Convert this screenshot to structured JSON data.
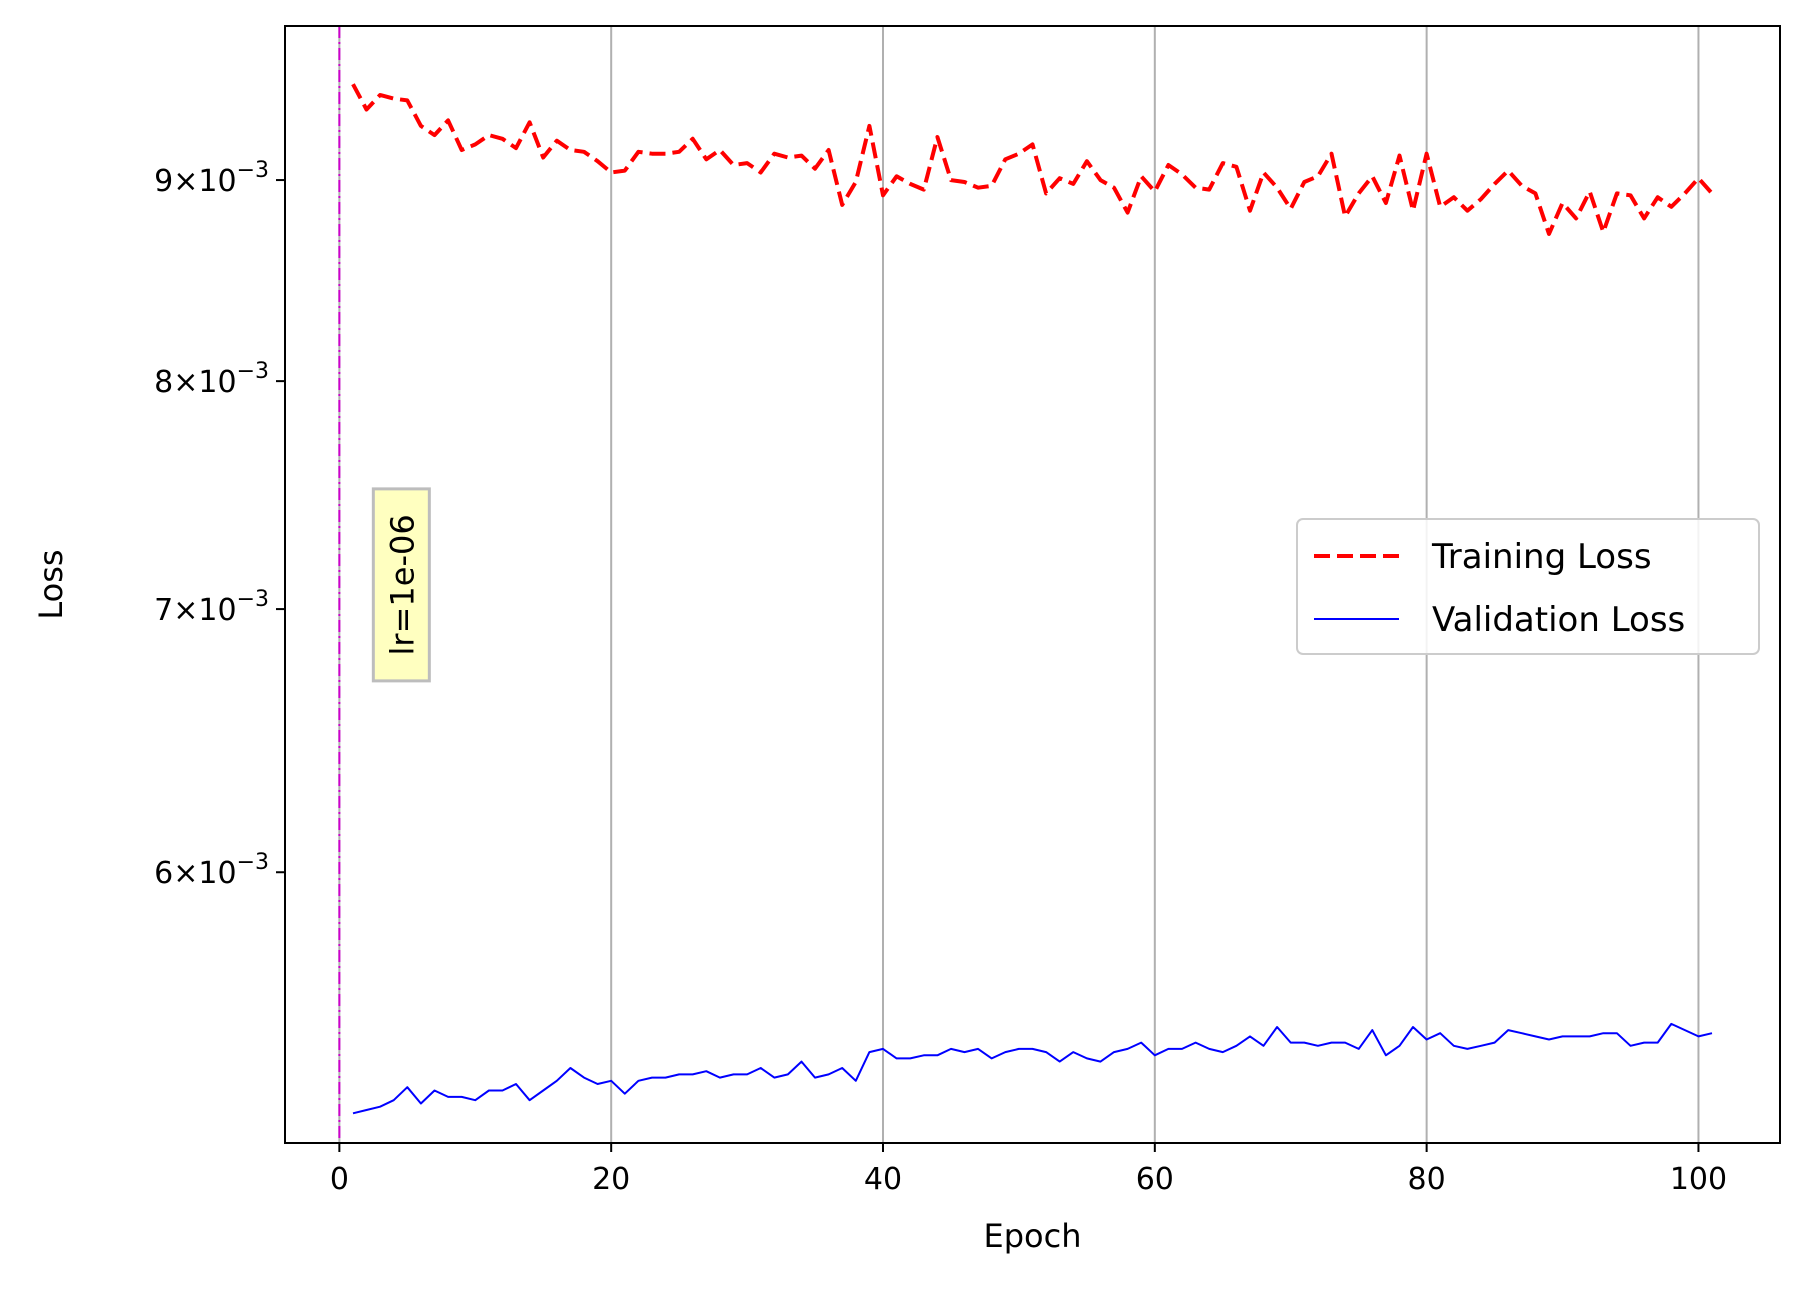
{
  "chart_data": {
    "type": "line",
    "title": "",
    "xlabel": "Epoch",
    "ylabel": "Loss",
    "yscale": "log",
    "xlim": [
      -4,
      106
    ],
    "ylim": [
      0.00512,
      0.00985
    ],
    "x_ticks": [
      0,
      20,
      40,
      60,
      80,
      100
    ],
    "x_tick_labels": [
      "0",
      "20",
      "40",
      "60",
      "80",
      "100"
    ],
    "y_ticks": [
      0.006,
      0.007,
      0.008,
      0.009
    ],
    "y_tick_labels": [
      {
        "mantissa": "6",
        "times": "×10",
        "exponent": "−3"
      },
      {
        "mantissa": "7",
        "times": "×10",
        "exponent": "−3"
      },
      {
        "mantissa": "8",
        "times": "×10",
        "exponent": "−3"
      },
      {
        "mantissa": "9",
        "times": "×10",
        "exponent": "−3"
      }
    ],
    "grid": "vertical",
    "legend_position": "center-right",
    "series": [
      {
        "name": "Training Loss",
        "color": "#ff0000",
        "style": "dashed",
        "x_start": 1,
        "values": [
          0.00952,
          0.00938,
          0.00946,
          0.00944,
          0.00943,
          0.00929,
          0.00924,
          0.00932,
          0.00916,
          0.00919,
          0.00924,
          0.00922,
          0.00917,
          0.00931,
          0.00912,
          0.00921,
          0.00916,
          0.00915,
          0.0091,
          0.00904,
          0.00905,
          0.00915,
          0.00914,
          0.00914,
          0.00915,
          0.00922,
          0.00911,
          0.00916,
          0.00908,
          0.00909,
          0.00904,
          0.00914,
          0.00912,
          0.00913,
          0.00906,
          0.00916,
          0.00887,
          0.00899,
          0.00929,
          0.00892,
          0.00902,
          0.00898,
          0.00895,
          0.00923,
          0.009,
          0.00899,
          0.00896,
          0.00897,
          0.00911,
          0.00914,
          0.00919,
          0.00893,
          0.00901,
          0.00898,
          0.0091,
          0.009,
          0.00896,
          0.00883,
          0.00902,
          0.00894,
          0.00908,
          0.00903,
          0.00896,
          0.00895,
          0.00909,
          0.00907,
          0.00884,
          0.00904,
          0.00896,
          0.00885,
          0.00899,
          0.00902,
          0.00914,
          0.00881,
          0.00893,
          0.00902,
          0.00888,
          0.00913,
          0.00884,
          0.00914,
          0.00886,
          0.00891,
          0.00884,
          0.0089,
          0.00898,
          0.00905,
          0.00897,
          0.00893,
          0.00872,
          0.00888,
          0.0088,
          0.00894,
          0.00873,
          0.00893,
          0.00892,
          0.0088,
          0.00891,
          0.00886,
          0.00893,
          0.00901,
          0.00893
        ]
      },
      {
        "name": "Validation Loss",
        "color": "#0000ff",
        "style": "solid",
        "x_start": 1,
        "values": [
          0.00521,
          0.00522,
          0.00523,
          0.00525,
          0.00529,
          0.00524,
          0.00528,
          0.00526,
          0.00526,
          0.00525,
          0.00528,
          0.00528,
          0.0053,
          0.00525,
          0.00528,
          0.00531,
          0.00535,
          0.00532,
          0.0053,
          0.00531,
          0.00527,
          0.00531,
          0.00532,
          0.00532,
          0.00533,
          0.00533,
          0.00534,
          0.00532,
          0.00533,
          0.00533,
          0.00535,
          0.00532,
          0.00533,
          0.00537,
          0.00532,
          0.00533,
          0.00535,
          0.00531,
          0.0054,
          0.00541,
          0.00538,
          0.00538,
          0.00539,
          0.00539,
          0.00541,
          0.0054,
          0.00541,
          0.00538,
          0.0054,
          0.00541,
          0.00541,
          0.0054,
          0.00537,
          0.0054,
          0.00538,
          0.00537,
          0.0054,
          0.00541,
          0.00543,
          0.00539,
          0.00541,
          0.00541,
          0.00543,
          0.00541,
          0.0054,
          0.00542,
          0.00545,
          0.00542,
          0.00548,
          0.00543,
          0.00543,
          0.00542,
          0.00543,
          0.00543,
          0.00541,
          0.00547,
          0.00539,
          0.00542,
          0.00548,
          0.00544,
          0.00546,
          0.00542,
          0.00541,
          0.00542,
          0.00543,
          0.00547,
          0.00546,
          0.00545,
          0.00544,
          0.00545,
          0.00545,
          0.00545,
          0.00546,
          0.00546,
          0.00542,
          0.00543,
          0.00543,
          0.00549,
          0.00547,
          0.00545,
          0.00546
        ]
      }
    ],
    "vertical_line": {
      "x": 0,
      "color": "#cc00cc",
      "style": "dashdot"
    },
    "annotation": {
      "text": "lr=1e-06",
      "x": 2.5,
      "y": 0.0071,
      "rotation": -90,
      "box_color": "#ffffc0",
      "edge_color": "#bdbdbd"
    }
  }
}
